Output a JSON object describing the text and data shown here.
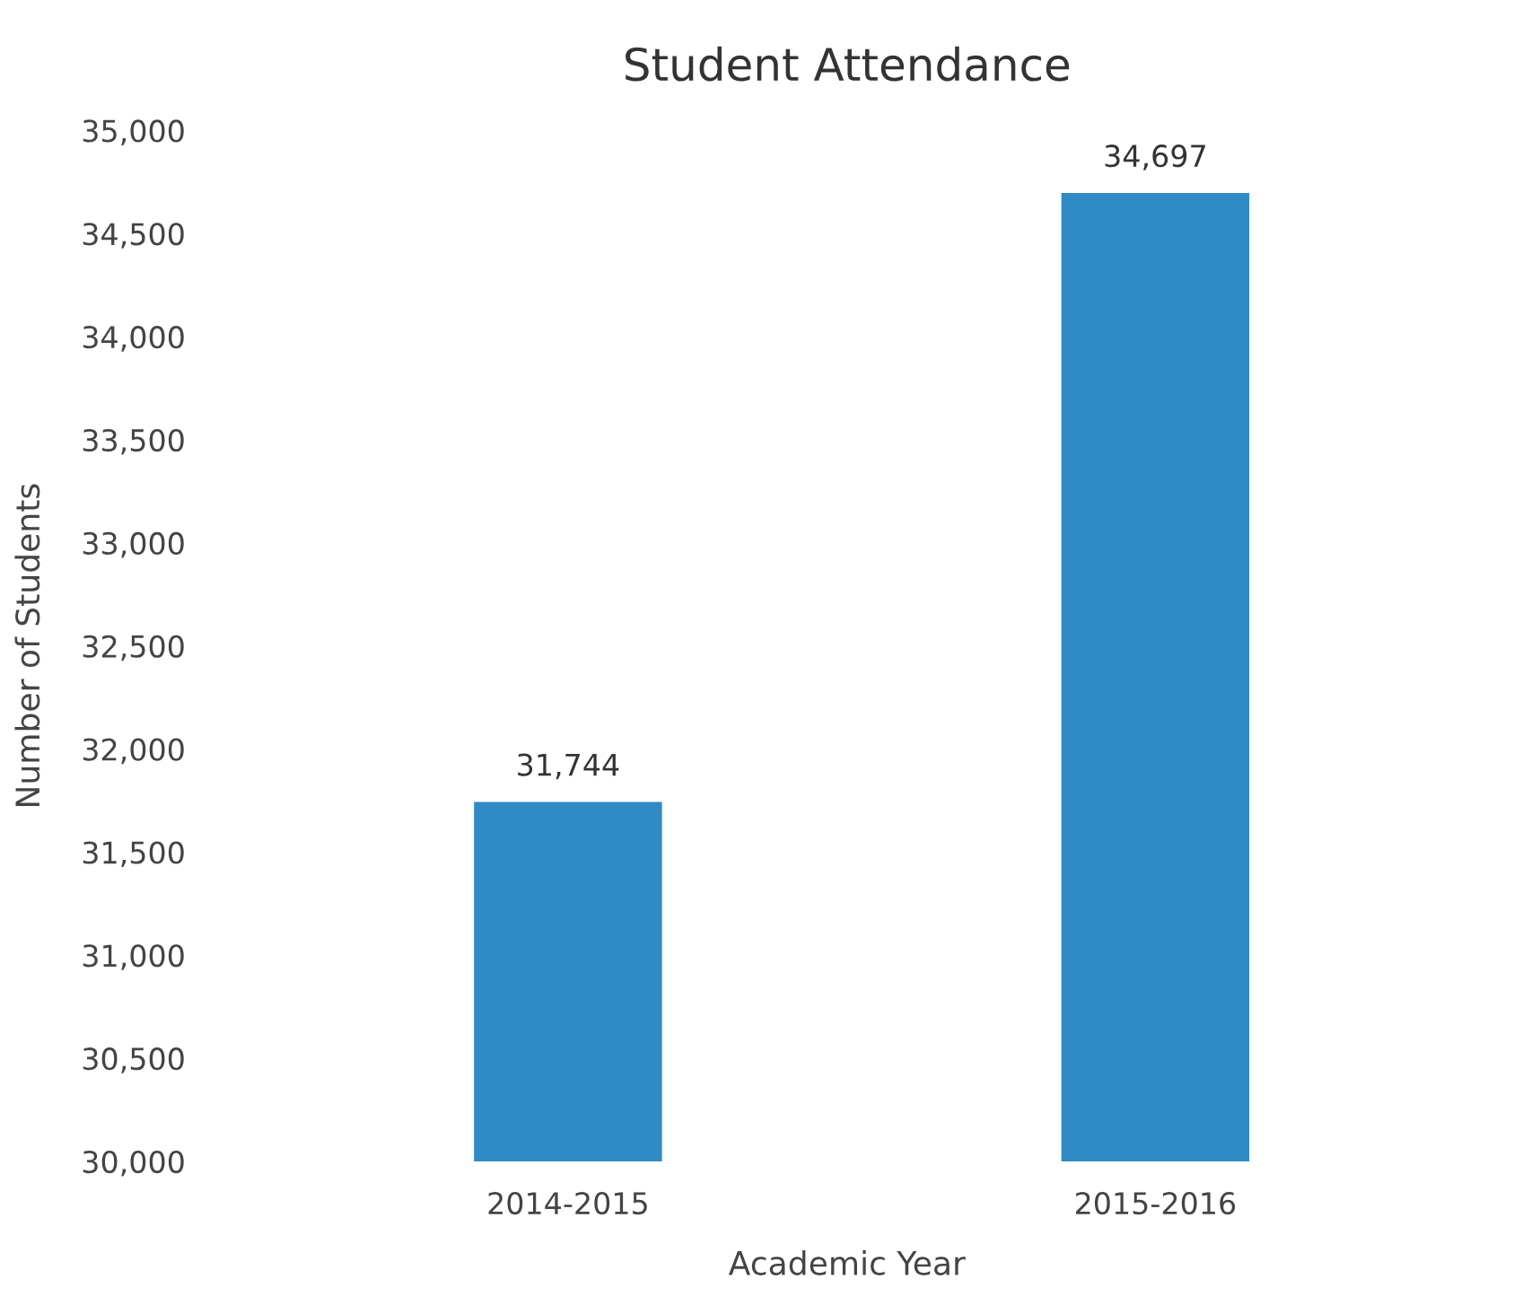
{
  "chart_data": {
    "type": "bar",
    "title": "Student Attendance",
    "xlabel": "Academic Year",
    "ylabel": "Number of Students",
    "categories": [
      "2014-2015",
      "2015-2016"
    ],
    "values": [
      31744,
      34697
    ],
    "color": "#2f8ac6",
    "value_labels": [
      "31,744",
      "34,697"
    ],
    "ylim": [
      30000,
      35000
    ],
    "yticks": [
      {
        "value": 30000,
        "label": "30,000"
      },
      {
        "value": 30500,
        "label": "30,500"
      },
      {
        "value": 31000,
        "label": "31,000"
      },
      {
        "value": 31500,
        "label": "31,500"
      },
      {
        "value": 32000,
        "label": "32,000"
      },
      {
        "value": 32500,
        "label": "32,500"
      },
      {
        "value": 33000,
        "label": "33,000"
      },
      {
        "value": 33500,
        "label": "33,500"
      },
      {
        "value": 34000,
        "label": "34,000"
      },
      {
        "value": 34500,
        "label": "34,500"
      },
      {
        "value": 35000,
        "label": "35,000"
      }
    ],
    "grid": false,
    "legend": false
  }
}
